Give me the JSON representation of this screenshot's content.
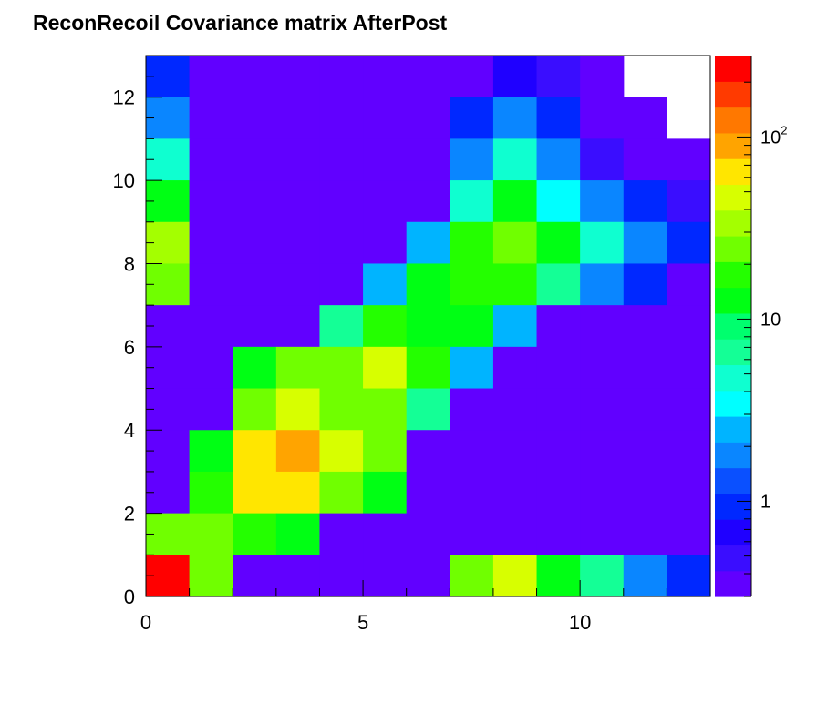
{
  "title": "ReconRecoil Covariance matrix AfterPost",
  "chart_data": {
    "type": "heatmap",
    "title": "ReconRecoil Covariance matrix AfterPost",
    "xlabel": "",
    "ylabel": "",
    "xlim": [
      0,
      13
    ],
    "ylim": [
      0,
      13
    ],
    "nx": 13,
    "ny": 13,
    "x_ticks": [
      0,
      5,
      10
    ],
    "y_ticks": [
      0,
      2,
      4,
      6,
      8,
      10,
      12
    ],
    "x_tick_labels": [
      "0",
      "5",
      "10"
    ],
    "y_tick_labels": [
      "0",
      "2",
      "4",
      "6",
      "8",
      "10",
      "12"
    ],
    "z_scale": "log",
    "zlim": [
      0.3,
      280
    ],
    "palette_tick_labels": [
      {
        "value": 1,
        "base": "1",
        "exp": ""
      },
      {
        "value": 10,
        "base": "10",
        "exp": ""
      },
      {
        "value": 100,
        "base": "10",
        "exp": "2"
      }
    ],
    "palette_colors": [
      "#6100ff",
      "#3a0dff",
      "#1f00ff",
      "#0028ff",
      "#0a50ff",
      "#0a86ff",
      "#00b4ff",
      "#00ffff",
      "#0fffd0",
      "#14ff96",
      "#00ff6e",
      "#00ff14",
      "#24ff00",
      "#70ff00",
      "#a4ff00",
      "#d7ff00",
      "#ffe600",
      "#ffa400",
      "#ff7800",
      "#ff3a00",
      "#ff0000"
    ],
    "grid": false,
    "legend": "right",
    "rows_top_to_bottom": true,
    "z": [
      [
        0.98,
        0.3,
        0.3,
        0.3,
        0.3,
        0.3,
        0.3,
        0.4,
        0.7,
        0.45,
        0.3,
        null,
        null
      ],
      [
        1.6,
        0.3,
        0.3,
        0.3,
        0.3,
        0.3,
        0.3,
        0.8,
        1.6,
        0.8,
        0.4,
        0.36,
        null
      ],
      [
        4.5,
        0.3,
        0.3,
        0.3,
        0.3,
        0.3,
        0.3,
        1.8,
        5.5,
        1.8,
        0.5,
        0.4,
        0.3
      ],
      [
        12,
        0.3,
        0.3,
        0.3,
        0.3,
        0.3,
        0.3,
        5.0,
        11,
        4.0,
        2.0,
        0.9,
        0.55
      ],
      [
        32,
        0.3,
        0.3,
        0.3,
        0.3,
        0.3,
        2.6,
        18,
        25,
        12,
        4.5,
        1.7,
        0.8
      ],
      [
        25,
        0.3,
        0.3,
        0.3,
        0.3,
        2.6,
        12,
        18,
        18,
        6.0,
        2.0,
        0.8,
        0.4
      ],
      [
        0.3,
        0.3,
        0.3,
        0.3,
        6.0,
        18,
        12,
        12,
        2.6,
        0.3,
        0.3,
        0.3,
        0.3
      ],
      [
        0.3,
        0.3,
        11,
        25,
        25,
        40,
        18,
        2.6,
        0.3,
        0.3,
        0.3,
        0.3,
        0.3
      ],
      [
        0.3,
        0.3,
        25,
        40,
        25,
        25,
        6.0,
        0.3,
        0.3,
        0.3,
        0.3,
        0.3,
        0.3
      ],
      [
        0.3,
        11,
        60,
        90,
        40,
        25,
        0.3,
        0.3,
        0.3,
        0.3,
        0.3,
        0.3,
        0.3
      ],
      [
        0.3,
        18,
        55,
        55,
        25,
        11,
        0.3,
        0.3,
        0.3,
        0.3,
        0.3,
        0.3,
        0.3
      ],
      [
        25,
        25,
        18,
        11,
        0.3,
        0.3,
        0.3,
        0.3,
        0.3,
        0.3,
        0.3,
        0.3,
        0.3
      ],
      [
        280,
        25,
        0.3,
        0.3,
        0.3,
        0.3,
        0.3,
        25,
        40,
        12,
        6.0,
        2.0,
        1.0
      ]
    ]
  }
}
